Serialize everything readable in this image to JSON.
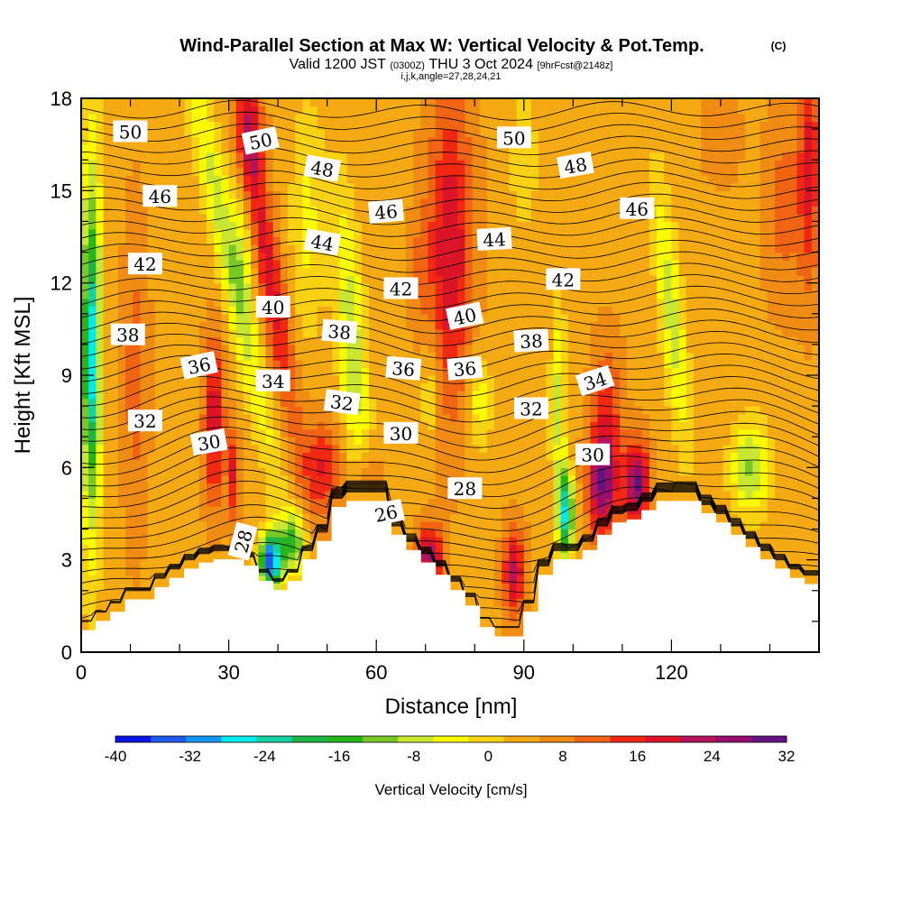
{
  "chart_data": {
    "type": "heatmap",
    "title": "Wind-Parallel Section at Max W: Vertical Velocity & Pot.Temp.",
    "title_mark": "(C)",
    "subtitle_main": "Valid 1200 JST",
    "subtitle_utc": "(0300Z)",
    "subtitle_date": "THU 3 Oct 2024",
    "subtitle_fcst": "[9hrFcst@2148z]",
    "subtitle_ijk": "i,j,k,angle=27,28,24,21",
    "xlabel": "Distance [nm]",
    "ylabel": "Height [Kft MSL]",
    "xlim": [
      0,
      150
    ],
    "ylim": [
      0,
      18
    ],
    "xticks": [
      "0",
      "30",
      "60",
      "90",
      "120"
    ],
    "yticks": [
      "0",
      "3",
      "6",
      "9",
      "12",
      "15",
      "18"
    ],
    "colorbar": {
      "label": "Vertical Velocity [cm/s]",
      "ticks": [
        "-40",
        "-32",
        "-24",
        "-16",
        "-8",
        "0",
        "8",
        "16",
        "24",
        "32"
      ],
      "colors": [
        "#0a14e6",
        "#1e5af0",
        "#1496f0",
        "#00ebeb",
        "#14d2a0",
        "#1eb446",
        "#28b41e",
        "#78c828",
        "#c8e632",
        "#fafa00",
        "#fad214",
        "#f5aa14",
        "#f08c14",
        "#f06414",
        "#f02814",
        "#dc1428",
        "#b4145a",
        "#960f6e",
        "#641482"
      ]
    },
    "theta_labels": [
      {
        "text": "50",
        "x": 10,
        "y": 16.9,
        "rot": 0
      },
      {
        "text": "50",
        "x": 36.5,
        "y": 16.6,
        "rot": -12
      },
      {
        "text": "48",
        "x": 49,
        "y": 15.7,
        "rot": 10
      },
      {
        "text": "50",
        "x": 88,
        "y": 16.7,
        "rot": 0
      },
      {
        "text": "48",
        "x": 100.5,
        "y": 15.8,
        "rot": -10
      },
      {
        "text": "46",
        "x": 16,
        "y": 14.8,
        "rot": 0
      },
      {
        "text": "46",
        "x": 62,
        "y": 14.3,
        "rot": -5
      },
      {
        "text": "46",
        "x": 113,
        "y": 14.4,
        "rot": 0
      },
      {
        "text": "44",
        "x": 49,
        "y": 13.3,
        "rot": 10
      },
      {
        "text": "44",
        "x": 84,
        "y": 13.4,
        "rot": -3
      },
      {
        "text": "42",
        "x": 13,
        "y": 12.6,
        "rot": 0
      },
      {
        "text": "42",
        "x": 65,
        "y": 11.8,
        "rot": 0
      },
      {
        "text": "42",
        "x": 98,
        "y": 12.1,
        "rot": 0
      },
      {
        "text": "40",
        "x": 39,
        "y": 11.2,
        "rot": 0
      },
      {
        "text": "40",
        "x": 78,
        "y": 10.9,
        "rot": -12
      },
      {
        "text": "38",
        "x": 9.5,
        "y": 10.3,
        "rot": 0
      },
      {
        "text": "38",
        "x": 52.5,
        "y": 10.4,
        "rot": 5
      },
      {
        "text": "38",
        "x": 91.5,
        "y": 10.1,
        "rot": -3
      },
      {
        "text": "36",
        "x": 24,
        "y": 9.3,
        "rot": -12
      },
      {
        "text": "36",
        "x": 65.5,
        "y": 9.2,
        "rot": 5
      },
      {
        "text": "36",
        "x": 78,
        "y": 9.2,
        "rot": -5
      },
      {
        "text": "34",
        "x": 39,
        "y": 8.8,
        "rot": 0
      },
      {
        "text": "34",
        "x": 104.5,
        "y": 8.8,
        "rot": -18
      },
      {
        "text": "32",
        "x": 53,
        "y": 8.1,
        "rot": 8
      },
      {
        "text": "32",
        "x": 13,
        "y": 7.5,
        "rot": 0
      },
      {
        "text": "32",
        "x": 91.5,
        "y": 7.9,
        "rot": 0
      },
      {
        "text": "30",
        "x": 26,
        "y": 6.8,
        "rot": -10
      },
      {
        "text": "30",
        "x": 65,
        "y": 7.1,
        "rot": 0
      },
      {
        "text": "30",
        "x": 104,
        "y": 6.4,
        "rot": 0
      },
      {
        "text": "28",
        "x": 78,
        "y": 5.3,
        "rot": 0
      },
      {
        "text": "28",
        "x": 33,
        "y": 3.6,
        "rot": -75
      },
      {
        "text": "26",
        "x": 62,
        "y": 4.5,
        "rot": -12
      }
    ]
  }
}
